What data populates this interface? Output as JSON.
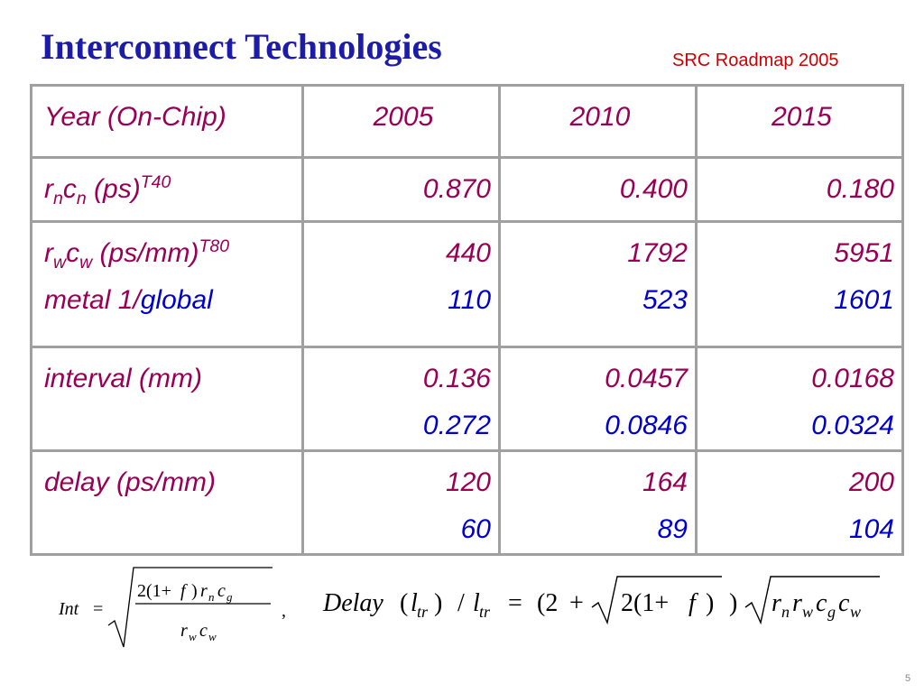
{
  "header": {
    "title": "Interconnect Technologies",
    "source": "SRC Roadmap 2005"
  },
  "table": {
    "header": [
      "Year (On-Chip)",
      "2005",
      "2010",
      "2015"
    ],
    "rows": [
      {
        "label": [
          [
            "r",
            "n",
            "c",
            "n",
            " (ps)",
            "T40"
          ]
        ],
        "cells": [
          [
            "0.870"
          ],
          [
            "0.400"
          ],
          [
            "0.180"
          ]
        ]
      },
      {
        "label": [
          [
            "r",
            "w",
            "c",
            "w",
            " (ps/mm)",
            "T80"
          ],
          [
            "metal 1/",
            "global"
          ]
        ],
        "cells": [
          [
            "440",
            "110"
          ],
          [
            "1792",
            "523"
          ],
          [
            "5951",
            "1601"
          ]
        ]
      },
      {
        "label": [
          [
            "interval (mm)"
          ]
        ],
        "cells": [
          [
            "0.136",
            "0.272"
          ],
          [
            "0.0457",
            "0.0846"
          ],
          [
            "0.0168",
            "0.0324"
          ]
        ]
      },
      {
        "label": [
          [
            "delay (ps/mm)"
          ]
        ],
        "cells": [
          [
            "120",
            "60"
          ],
          [
            "164",
            "89"
          ],
          [
            "200",
            "104"
          ]
        ]
      }
    ]
  },
  "formulas": [
    {
      "parts": [
        "Int",
        "=",
        "2(1+",
        "f",
        ")",
        "r",
        "n",
        "c",
        "g",
        "r",
        "w",
        "c",
        "w",
        ","
      ]
    },
    {
      "parts": [
        "Delay",
        "(",
        "l",
        "tr",
        ")",
        "/",
        "l",
        "tr",
        "=",
        "(2",
        "+",
        "2(1+",
        "f",
        ")",
        ")",
        "r",
        "n",
        "r",
        "w",
        "c",
        "g",
        "c",
        "w"
      ]
    }
  ],
  "footer": {
    "page": "5"
  }
}
